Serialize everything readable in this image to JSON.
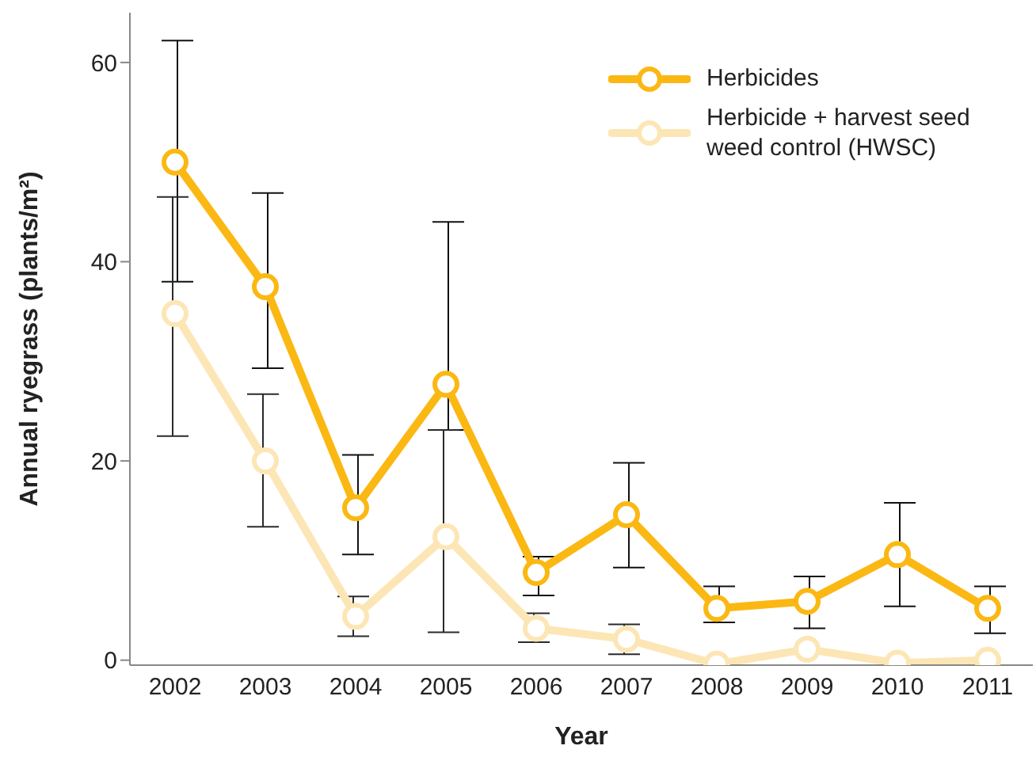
{
  "chart_data": {
    "type": "line",
    "xlabel": "Year",
    "ylabel": "Annual ryegrass (plants/m²)",
    "categories": [
      "2002",
      "2003",
      "2004",
      "2005",
      "2006",
      "2007",
      "2008",
      "2009",
      "2010",
      "2011"
    ],
    "series": [
      {
        "name": "Herbicides",
        "color": "#fbb813",
        "values": [
          50.0,
          37.5,
          15.3,
          27.7,
          8.8,
          14.6,
          5.2,
          5.9,
          10.6,
          5.2
        ],
        "errors": [
          [
            38.0,
            62.2
          ],
          [
            29.3,
            46.9
          ],
          [
            10.6,
            20.6
          ],
          [
            23.1,
            44.0
          ],
          [
            6.5,
            10.4
          ],
          [
            9.3,
            19.8
          ],
          [
            3.8,
            7.4
          ],
          [
            3.2,
            8.4
          ],
          [
            5.4,
            15.8
          ],
          [
            2.7,
            7.4
          ]
        ]
      },
      {
        "name": "Herbicide + harvest seed weed control (HWSC)",
        "color": "#fde6b5",
        "values": [
          34.8,
          20.0,
          4.4,
          12.4,
          3.2,
          2.1,
          -0.4,
          1.1,
          -0.3,
          0.0
        ],
        "errors": [
          [
            22.5,
            46.5
          ],
          [
            13.4,
            26.7
          ],
          [
            2.4,
            6.4
          ],
          [
            2.8,
            23.1
          ],
          [
            1.8,
            4.7
          ],
          [
            0.6,
            3.6
          ],
          null,
          null,
          null,
          null
        ]
      }
    ],
    "ylim": [
      -0.5,
      65
    ],
    "yticks": [
      0,
      20,
      40,
      60
    ],
    "grid": false,
    "legend": "top right",
    "marker": "circle",
    "line_style": "solid"
  }
}
